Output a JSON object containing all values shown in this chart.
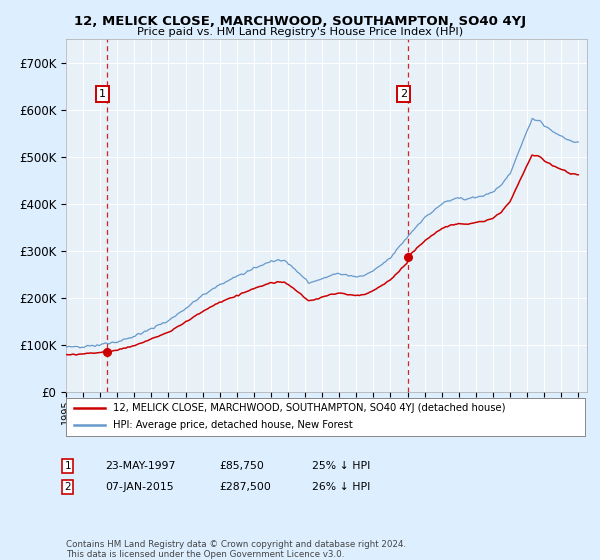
{
  "title_line1": "12, MELICK CLOSE, MARCHWOOD, SOUTHAMPTON, SO40 4YJ",
  "title_line2": "Price paid vs. HM Land Registry's House Price Index (HPI)",
  "legend_label_red": "12, MELICK CLOSE, MARCHWOOD, SOUTHAMPTON, SO40 4YJ (detached house)",
  "legend_label_blue": "HPI: Average price, detached house, New Forest",
  "annotation1_date": "23-MAY-1997",
  "annotation1_price": "£85,750",
  "annotation1_pct": "25% ↓ HPI",
  "annotation2_date": "07-JAN-2015",
  "annotation2_price": "£287,500",
  "annotation2_pct": "26% ↓ HPI",
  "footnote": "Contains HM Land Registry data © Crown copyright and database right 2024.\nThis data is licensed under the Open Government Licence v3.0.",
  "sale1_year": 1997.38,
  "sale1_price": 85750,
  "sale2_year": 2015.02,
  "sale2_price": 287500,
  "ylim_max": 750000,
  "ylim_min": 0,
  "xlim_min": 1995.0,
  "xlim_max": 2025.5,
  "red_line_color": "#cc0000",
  "blue_line_color": "#6699cc",
  "dashed_line_color": "#cc0000",
  "background_color": "#ddeeff",
  "plot_bg_color": "#e8f0f8",
  "grid_color": "#ffffff",
  "annotation_box_edge": "#cc0000"
}
